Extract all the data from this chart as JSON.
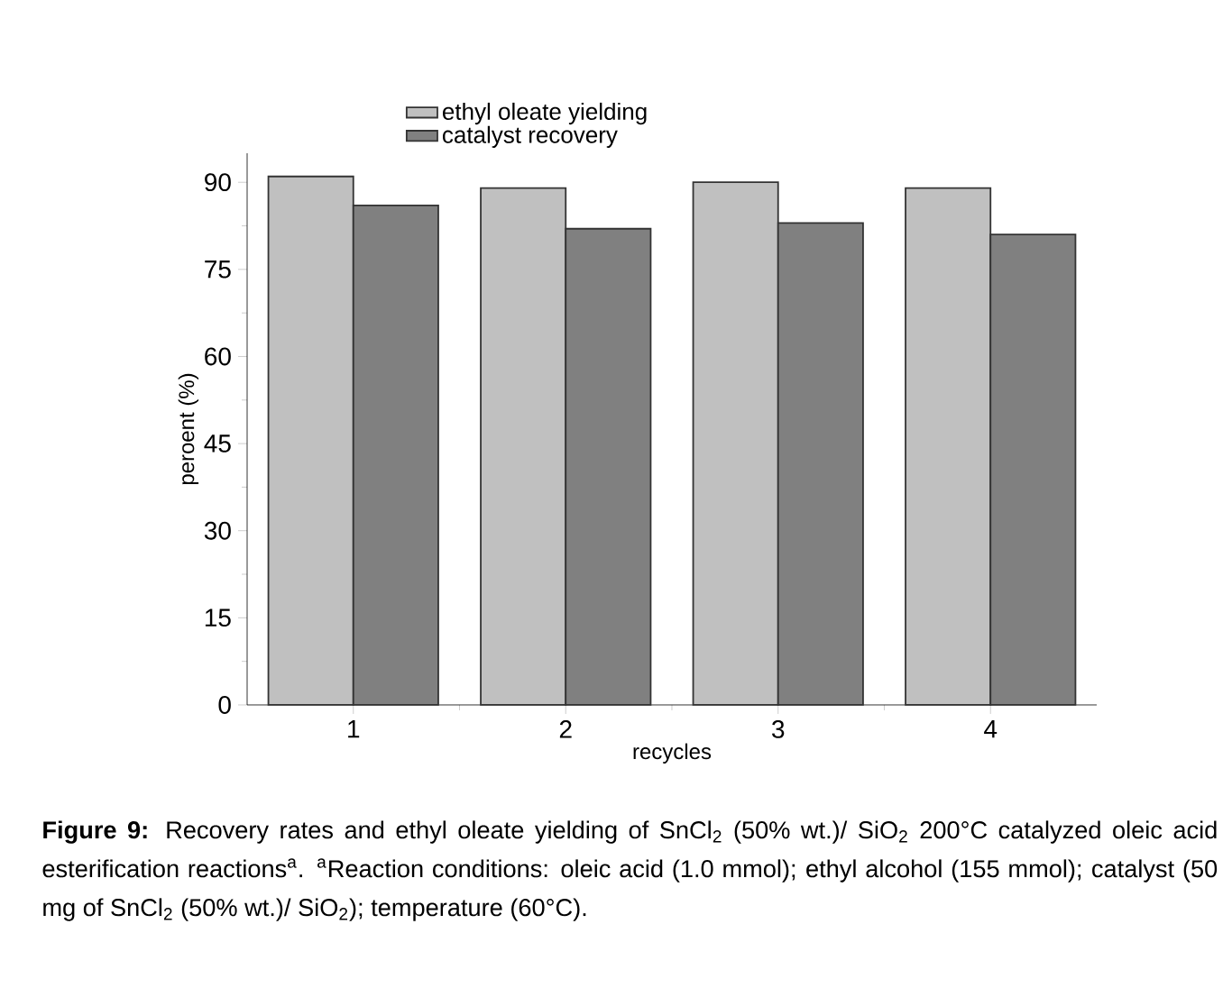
{
  "chart_data": {
    "type": "bar",
    "categories": [
      "1",
      "2",
      "3",
      "4"
    ],
    "series": [
      {
        "name": "ethyl oleate yielding",
        "color": "#c0c0c0",
        "values": [
          91,
          89,
          90,
          89
        ]
      },
      {
        "name": "catalyst recovery",
        "color": "#808080",
        "values": [
          86,
          82,
          83,
          81
        ]
      }
    ],
    "xlabel": "recycles",
    "ylabel": "peroent (%)",
    "ylim": [
      0,
      95
    ],
    "yticks": [
      0,
      15,
      30,
      45,
      60,
      75,
      90
    ],
    "legend": "top",
    "grid": false,
    "annotations": [
      "**Figure 9:** Recovery rates and ethyl oleate yielding of SnCl$_{2}$ (50% wt.)/ SiO$_{2}$ 200°C catalyzed oleic acid esterification reactions$^{a}$. $^{a}$Reaction conditions: oleic acid (1.0 mmol); ethyl alcohol (155 mmol); catalyst (50 mg of SnCl$_{2}$ (50% wt.)/ SiO$_{2}$); temperature (60°C)."
    ]
  }
}
